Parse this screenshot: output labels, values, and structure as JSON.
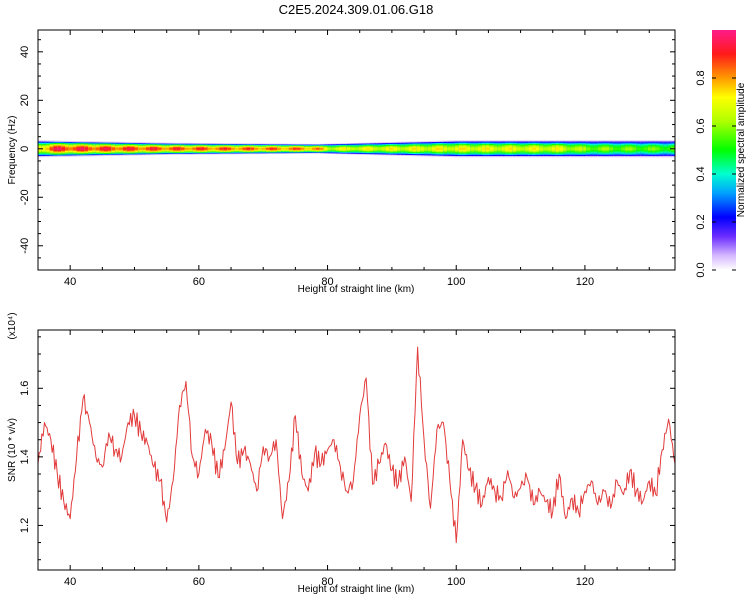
{
  "title": "C2E5.2024.309.01.06.G18",
  "chart_data": [
    {
      "type": "heatmap",
      "xlabel": "Height of straight line (km)",
      "ylabel": "Frequency (Hz)",
      "xlim": [
        35,
        134
      ],
      "ylim": [
        -50,
        49
      ],
      "xticks": [
        "40",
        "60",
        "80",
        "100",
        "120"
      ],
      "xtick_values": [
        40,
        60,
        80,
        100,
        120
      ],
      "yticks": [
        "40",
        "20",
        "0",
        "-20",
        "-40"
      ],
      "ytick_values": [
        40,
        20,
        0,
        -20,
        -40
      ],
      "colorbar": {
        "label": "Normalized spectral amplitude",
        "ticks": [
          "0.0",
          "0.2",
          "0.4",
          "0.6",
          "0.8"
        ],
        "tick_values": [
          0.0,
          0.2,
          0.4,
          0.6,
          0.8
        ],
        "range": [
          0,
          1
        ]
      },
      "band": {
        "center_hz": 0,
        "halfwidth_hz": [
          {
            "x": 35,
            "hz": 3.5
          },
          {
            "x": 55,
            "hz": 2.5
          },
          {
            "x": 78,
            "hz": 2.0
          },
          {
            "x": 100,
            "hz": 3.5
          },
          {
            "x": 134,
            "hz": 3.5
          }
        ],
        "core_amplitude": [
          {
            "x": 35,
            "v": 0.75
          },
          {
            "x": 37,
            "v": 0.95
          },
          {
            "x": 55,
            "v": 0.9
          },
          {
            "x": 78,
            "v": 0.85
          },
          {
            "x": 80,
            "v": 0.7
          },
          {
            "x": 100,
            "v": 0.72
          },
          {
            "x": 116,
            "v": 0.7
          },
          {
            "x": 120,
            "v": 0.6
          },
          {
            "x": 134,
            "v": 0.55
          }
        ]
      }
    },
    {
      "type": "line",
      "xlabel": "Height of straight line (km)",
      "ylabel": "SNR (10 * v/v)",
      "y_multiplier": "(x10⁴)",
      "xlim": [
        35,
        134
      ],
      "ylim": [
        1.07,
        1.77
      ],
      "xticks": [
        "40",
        "60",
        "80",
        "100",
        "120"
      ],
      "xtick_values": [
        40,
        60,
        80,
        100,
        120
      ],
      "yticks": [
        "1.2",
        "1.4",
        "1.6"
      ],
      "ytick_values": [
        1.2,
        1.4,
        1.6
      ],
      "color": "#e23b3b",
      "series": [
        {
          "x": [
            35,
            36,
            37,
            38,
            39,
            40,
            41,
            42,
            43,
            44,
            45,
            46,
            47,
            48,
            49,
            50,
            51,
            52,
            53,
            54,
            55,
            56,
            57,
            58,
            59,
            60,
            61,
            62,
            63,
            64,
            65,
            66,
            67,
            68,
            69,
            70,
            71,
            72,
            73,
            74,
            75,
            76,
            77,
            78,
            79,
            80,
            81,
            82,
            83,
            84,
            85,
            86,
            87,
            88,
            89,
            90,
            91,
            92,
            93,
            94,
            95,
            96,
            97,
            98,
            99,
            100,
            101,
            102,
            103,
            104,
            105,
            106,
            107,
            108,
            109,
            110,
            111,
            112,
            113,
            114,
            115,
            116,
            117,
            118,
            119,
            120,
            121,
            122,
            123,
            124,
            125,
            126,
            127,
            128,
            129,
            130,
            131,
            132,
            133,
            134
          ],
          "values": [
            1.38,
            1.5,
            1.45,
            1.35,
            1.27,
            1.22,
            1.4,
            1.57,
            1.5,
            1.4,
            1.37,
            1.47,
            1.42,
            1.4,
            1.5,
            1.52,
            1.47,
            1.44,
            1.37,
            1.33,
            1.21,
            1.33,
            1.55,
            1.62,
            1.4,
            1.35,
            1.48,
            1.44,
            1.34,
            1.42,
            1.56,
            1.38,
            1.42,
            1.38,
            1.3,
            1.43,
            1.4,
            1.45,
            1.22,
            1.33,
            1.52,
            1.35,
            1.3,
            1.41,
            1.38,
            1.42,
            1.45,
            1.37,
            1.3,
            1.33,
            1.52,
            1.63,
            1.32,
            1.38,
            1.44,
            1.36,
            1.32,
            1.4,
            1.27,
            1.72,
            1.45,
            1.25,
            1.48,
            1.5,
            1.33,
            1.15,
            1.45,
            1.36,
            1.31,
            1.26,
            1.34,
            1.3,
            1.28,
            1.36,
            1.28,
            1.31,
            1.34,
            1.26,
            1.3,
            1.27,
            1.24,
            1.35,
            1.22,
            1.28,
            1.24,
            1.3,
            1.33,
            1.26,
            1.3,
            1.25,
            1.33,
            1.29,
            1.36,
            1.3,
            1.27,
            1.33,
            1.29,
            1.42,
            1.51,
            1.38
          ]
        }
      ]
    }
  ]
}
